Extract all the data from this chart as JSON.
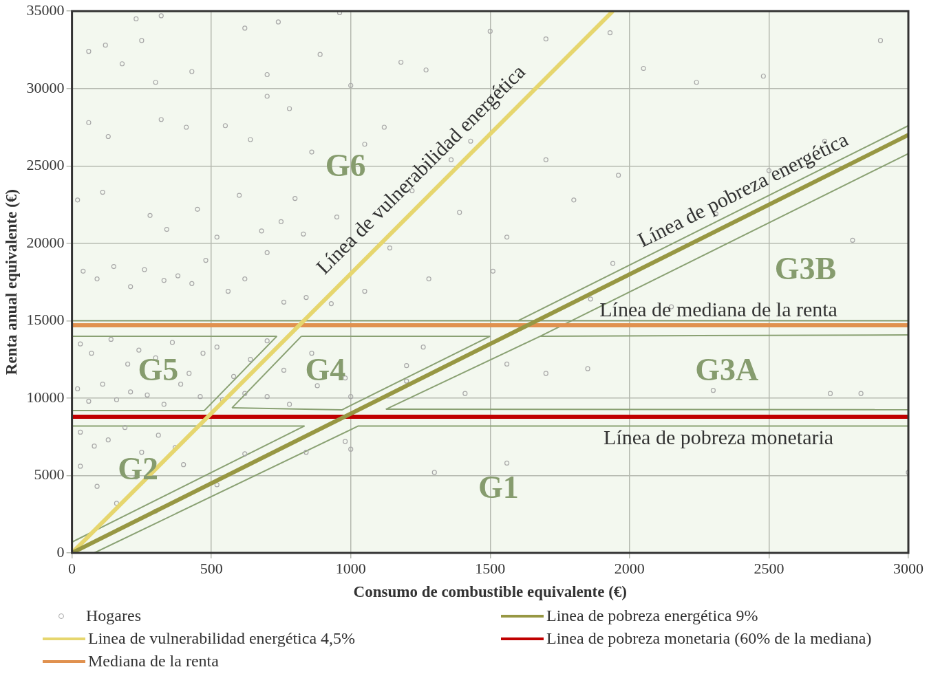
{
  "chart_data": {
    "type": "scatter",
    "xlabel": "Consumo de combustible equivalente (€)",
    "ylabel": "Renta anual equivalente (€)",
    "xlim": [
      0,
      3000
    ],
    "ylim": [
      0,
      35000
    ],
    "xticks": [
      0,
      500,
      1000,
      1500,
      2000,
      2500,
      3000
    ],
    "yticks": [
      0,
      5000,
      10000,
      15000,
      20000,
      25000,
      30000,
      35000
    ],
    "grid": true,
    "legend": "bottom",
    "series": [
      {
        "name": "Hogares",
        "marker": "circle",
        "color": "#a8a8a8",
        "x": [
          230,
          320,
          60,
          120,
          180,
          250,
          300,
          430,
          620,
          700,
          740,
          890,
          960,
          1000,
          1180,
          1270,
          1500,
          1700,
          1930,
          2050,
          2240,
          2480,
          2900,
          60,
          130,
          320,
          410,
          550,
          640,
          700,
          780,
          860,
          1050,
          1120,
          1360,
          1430,
          1700,
          1960,
          2500,
          2700,
          20,
          110,
          280,
          340,
          450,
          520,
          600,
          680,
          750,
          800,
          830,
          950,
          1140,
          1220,
          1390,
          1560,
          1800,
          1940,
          2310,
          2800,
          40,
          90,
          150,
          210,
          260,
          330,
          380,
          430,
          480,
          560,
          620,
          700,
          760,
          840,
          930,
          1050,
          1280,
          1510,
          1860,
          2150,
          30,
          70,
          140,
          200,
          240,
          300,
          360,
          420,
          470,
          520,
          580,
          640,
          700,
          760,
          860,
          980,
          1200,
          1260,
          1560,
          2720,
          20,
          60,
          110,
          160,
          210,
          270,
          330,
          390,
          460,
          540,
          620,
          700,
          780,
          880,
          1000,
          1200,
          1410,
          1700,
          1850,
          2300,
          2830,
          30,
          80,
          130,
          190,
          250,
          310,
          370,
          30,
          90,
          160,
          230,
          300,
          400,
          520,
          620,
          840,
          980,
          1300,
          1560,
          1000,
          3000
        ],
        "values": [
          34500,
          34700,
          32400,
          32800,
          31600,
          33100,
          30400,
          31100,
          33900,
          30900,
          34300,
          32200,
          34900,
          30200,
          31700,
          31200,
          33700,
          33200,
          33600,
          31300,
          30400,
          30800,
          33100,
          27800,
          26900,
          28000,
          27500,
          27600,
          26700,
          29500,
          28700,
          25900,
          26400,
          27500,
          25400,
          26600,
          25400,
          24400,
          24700,
          26600,
          22800,
          23300,
          21800,
          20900,
          22200,
          20400,
          23100,
          20800,
          21400,
          22900,
          20600,
          21700,
          19700,
          23400,
          22000,
          20400,
          22800,
          18700,
          21900,
          20200,
          18200,
          17700,
          18500,
          17200,
          18300,
          17600,
          17900,
          17400,
          18900,
          16900,
          17700,
          19400,
          16200,
          16500,
          16100,
          16900,
          17700,
          18200,
          16400,
          15900,
          13500,
          12900,
          13800,
          12200,
          13100,
          12600,
          13600,
          11600,
          12900,
          13300,
          11400,
          12500,
          13700,
          11800,
          12900,
          11300,
          12100,
          13300,
          12200,
          10300,
          10600,
          9800,
          10900,
          9900,
          10400,
          10200,
          9600,
          10900,
          10100,
          9900,
          10300,
          10100,
          9600,
          10800,
          10100,
          11100,
          10300,
          11600,
          11900,
          10500,
          10300,
          7800,
          6900,
          7300,
          8100,
          6500,
          7600,
          6800,
          5600,
          4300,
          3200,
          4900,
          2700,
          5700,
          4400,
          6400,
          6500,
          7200,
          5200,
          5800,
          6700,
          5200
        ]
      },
      {
        "name": "Linea de pobreza energética 9%",
        "type": "line",
        "marker": "none",
        "color": "#979743",
        "x": [
          0,
          3000
        ],
        "values": [
          0,
          27000
        ]
      },
      {
        "name": "Linea de vulnerabilidad energética 4,5%",
        "type": "line",
        "marker": "none",
        "color": "#e6d66e",
        "x": [
          0,
          1940
        ],
        "values": [
          0,
          35000
        ]
      },
      {
        "name": "Linea de pobreza monetaria (60% de la mediana)",
        "type": "line",
        "marker": "none",
        "color": "#c00000",
        "x": [
          0,
          3000
        ],
        "values": [
          8800,
          8800
        ]
      },
      {
        "name": "Mediana de la renta",
        "type": "line",
        "marker": "none",
        "color": "#e0914f",
        "x": [
          0,
          3000
        ],
        "values": [
          14700,
          14700
        ]
      },
      {
        "type": "line",
        "marker": "none",
        "color": "#8aa173",
        "x": [
          0,
          3000
        ],
        "values": [
          15000,
          15000
        ]
      },
      {
        "type": "line",
        "marker": "none",
        "color": "#8aa173",
        "x": [
          0,
          735
        ],
        "values": [
          14000,
          14000
        ]
      },
      {
        "type": "line",
        "marker": "none",
        "color": "#8aa173",
        "x": [
          0,
          475,
          735
        ],
        "values": [
          9200,
          9200,
          14000
        ]
      },
      {
        "type": "line",
        "marker": "none",
        "color": "#8aa173",
        "x": [
          823,
          1500
        ],
        "values": [
          14000,
          14000
        ]
      },
      {
        "type": "line",
        "marker": "none",
        "color": "#8aa173",
        "x": [
          574,
          968,
          1500
        ],
        "values": [
          9370,
          9240,
          14000
        ]
      },
      {
        "type": "line",
        "marker": "none",
        "color": "#8aa173",
        "x": [
          574,
          823
        ],
        "values": [
          9370,
          14000
        ]
      },
      {
        "type": "line",
        "marker": "none",
        "color": "#8aa173",
        "x": [
          1126,
          1680,
          3000
        ],
        "values": [
          9280,
          14000,
          14080
        ]
      },
      {
        "type": "line",
        "marker": "none",
        "color": "#8aa173",
        "x": [
          1126,
          3000
        ],
        "values": [
          9280,
          9250
        ]
      },
      {
        "type": "line",
        "marker": "none",
        "color": "#8aa173",
        "x": [
          0,
          834
        ],
        "values": [
          8200,
          8200
        ]
      },
      {
        "type": "line",
        "marker": "none",
        "color": "#8aa173",
        "x": [
          0,
          834
        ],
        "values": [
          700,
          8200
        ]
      },
      {
        "type": "line",
        "marker": "none",
        "color": "#8aa173",
        "x": [
          80,
          1027,
          3000
        ],
        "values": [
          0,
          8200,
          8200
        ]
      },
      {
        "type": "line",
        "marker": "none",
        "color": "#8aa173",
        "x": [
          1600,
          3000
        ],
        "values": [
          15000,
          27600
        ]
      },
      {
        "type": "line",
        "marker": "none",
        "color": "#8aa173",
        "x": [
          1680,
          3000
        ],
        "values": [
          14000,
          25800
        ]
      }
    ],
    "annotations": [
      "Línea de vulnerabilidad energética",
      "Línea de pobreza energética",
      "Línea de mediana de la renta",
      "Línea de pobreza monetaria",
      "G6",
      "G5",
      "G4",
      "G3A",
      "G3B",
      "G2",
      "G1"
    ]
  }
}
